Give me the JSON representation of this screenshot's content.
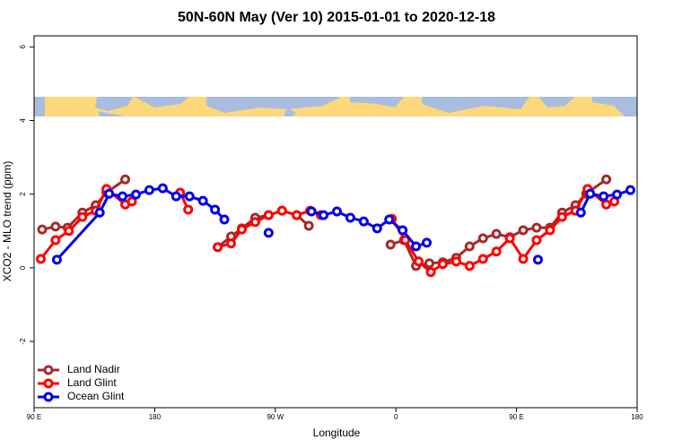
{
  "chart_data": {
    "type": "line",
    "title": "50N-60N May (Ver 10)   2015-01-01 to 2020-12-18",
    "x_label": "Longitude",
    "y_label": "XCO2 - MLO trend (ppm)",
    "xlim": [
      90,
      540
    ],
    "ylim": [
      -3.8,
      6.3
    ],
    "xticks": [
      {
        "value": 90,
        "label": "90 E"
      },
      180,
      {
        "value": 270,
        "label": "90 W"
      },
      {
        "value": 360,
        "label": "0"
      },
      {
        "value": 450,
        "label": "90 E"
      },
      {
        "value": 540,
        "label": "180"
      }
    ],
    "yticks": [
      -2,
      0,
      2,
      4,
      6
    ],
    "legend": "bottomleft",
    "series": [
      {
        "name": "Land Nadir",
        "color": "#a52a2a",
        "x": [
          96,
          106,
          115,
          126,
          136,
          144,
          158,
          null,
          227,
          237,
          245,
          255,
          265,
          275,
          286,
          295,
          null,
          356,
          366,
          375,
          385,
          395,
          405,
          415,
          425,
          435,
          445,
          455,
          465,
          475,
          484,
          494,
          502,
          517
        ],
        "values": [
          1.04,
          1.12,
          1.09,
          1.5,
          1.7,
          2.04,
          2.4,
          null,
          0.56,
          0.85,
          1.07,
          1.36,
          1.43,
          1.55,
          1.43,
          1.14,
          null,
          0.63,
          0.75,
          0.05,
          0.12,
          0.15,
          0.27,
          0.58,
          0.8,
          0.92,
          0.83,
          1.02,
          1.09,
          1.09,
          1.5,
          1.7,
          2.01,
          2.4
        ]
      },
      {
        "name": "Land Glint",
        "color": "#ff0000",
        "x": [
          95,
          106,
          116,
          126,
          136,
          144,
          158,
          163,
          null,
          199,
          205,
          null,
          227,
          237,
          245,
          255,
          265,
          275,
          286,
          296,
          304,
          null,
          357,
          367,
          377,
          386,
          395,
          405,
          415,
          425,
          435,
          445,
          455,
          465,
          475,
          484,
          494,
          503,
          517,
          523
        ],
        "values": [
          0.24,
          0.75,
          1.0,
          1.38,
          1.55,
          2.14,
          1.72,
          1.8,
          null,
          2.04,
          1.58,
          null,
          0.56,
          0.66,
          1.04,
          1.24,
          1.43,
          1.55,
          1.43,
          1.55,
          1.43,
          null,
          1.33,
          0.75,
          0.17,
          -0.12,
          0.1,
          0.17,
          0.05,
          0.24,
          0.44,
          0.8,
          0.24,
          0.75,
          1.02,
          1.38,
          1.55,
          2.14,
          1.72,
          1.8
        ]
      },
      {
        "name": "Ocean Glint",
        "color": "#0000ee",
        "x": [
          107,
          139,
          146,
          156,
          166,
          176,
          186,
          196,
          206,
          216,
          225,
          232,
          null,
          265,
          null,
          297,
          306,
          316,
          326,
          336,
          346,
          355,
          365,
          375,
          383,
          null,
          466,
          null,
          498,
          505,
          515,
          525,
          535
        ],
        "values": [
          0.22,
          1.5,
          2.01,
          1.94,
          1.99,
          2.11,
          2.16,
          1.94,
          1.94,
          1.82,
          1.58,
          1.31,
          null,
          0.95,
          null,
          1.53,
          1.43,
          1.53,
          1.36,
          1.26,
          1.07,
          1.31,
          1.02,
          0.58,
          0.68,
          null,
          0.22,
          null,
          1.5,
          2.01,
          1.94,
          1.99,
          2.11
        ]
      }
    ]
  }
}
